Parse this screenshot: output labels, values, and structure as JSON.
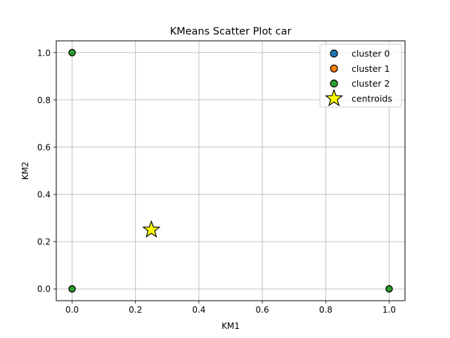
{
  "chart_data": {
    "type": "scatter",
    "title": "KMeans Scatter Plot car",
    "xlabel": "KM1",
    "ylabel": "KM2",
    "xlim": [
      -0.05,
      1.05
    ],
    "ylim": [
      -0.05,
      1.05
    ],
    "xticks": [
      "0.0",
      "0.2",
      "0.4",
      "0.6",
      "0.8",
      "1.0"
    ],
    "yticks": [
      "0.0",
      "0.2",
      "0.4",
      "0.6",
      "0.8",
      "1.0"
    ],
    "grid": true,
    "legend_position": "top-right",
    "series": [
      {
        "name": "cluster 0",
        "color": "#1f77b4",
        "marker": "circle",
        "points": [
          [
            0,
            0
          ],
          [
            0,
            1
          ],
          [
            1,
            0
          ]
        ]
      },
      {
        "name": "cluster 1",
        "color": "#ff7f0e",
        "marker": "circle",
        "points": [
          [
            0,
            0
          ],
          [
            0,
            1
          ],
          [
            1,
            0
          ]
        ]
      },
      {
        "name": "cluster 2",
        "color": "#2ca02c",
        "marker": "circle",
        "points": [
          [
            0,
            0
          ],
          [
            0,
            1
          ],
          [
            1,
            0
          ]
        ]
      },
      {
        "name": "centroids",
        "color": "#ffff00",
        "marker": "star",
        "points": [
          [
            0.25,
            0.25
          ]
        ]
      }
    ]
  }
}
